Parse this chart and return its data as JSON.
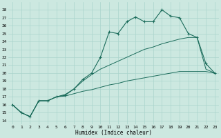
{
  "xlabel": "Humidex (Indice chaleur)",
  "bg_color": "#cce8e0",
  "grid_color": "#aad4cc",
  "line_color": "#1a6b5a",
  "xlim": [
    -0.5,
    23.5
  ],
  "ylim": [
    13.5,
    29.0
  ],
  "xticks": [
    0,
    1,
    2,
    3,
    4,
    5,
    6,
    7,
    8,
    9,
    10,
    11,
    12,
    13,
    14,
    15,
    16,
    17,
    18,
    19,
    20,
    21,
    22,
    23
  ],
  "yticks": [
    14,
    15,
    16,
    17,
    18,
    19,
    20,
    21,
    22,
    23,
    24,
    25,
    26,
    27,
    28
  ],
  "main_y": [
    16.0,
    15.0,
    14.5,
    16.5,
    16.5,
    17.0,
    17.2,
    18.0,
    19.2,
    20.0,
    22.0,
    25.2,
    25.0,
    26.5,
    27.1,
    26.5,
    26.5,
    28.0,
    27.2,
    27.0,
    25.0,
    24.5,
    21.2,
    20.0
  ],
  "line2_y": [
    16.0,
    15.0,
    14.5,
    16.5,
    16.5,
    17.0,
    17.3,
    18.0,
    19.0,
    19.8,
    20.5,
    21.0,
    21.5,
    22.0,
    22.5,
    23.0,
    23.3,
    23.7,
    24.0,
    24.3,
    24.5,
    24.5,
    20.5,
    20.0
  ],
  "line3_y": [
    16.0,
    15.0,
    14.5,
    16.5,
    16.5,
    17.0,
    17.1,
    17.4,
    17.7,
    17.9,
    18.2,
    18.5,
    18.7,
    19.0,
    19.2,
    19.4,
    19.6,
    19.8,
    20.0,
    20.2,
    20.2,
    20.2,
    20.2,
    20.0
  ]
}
